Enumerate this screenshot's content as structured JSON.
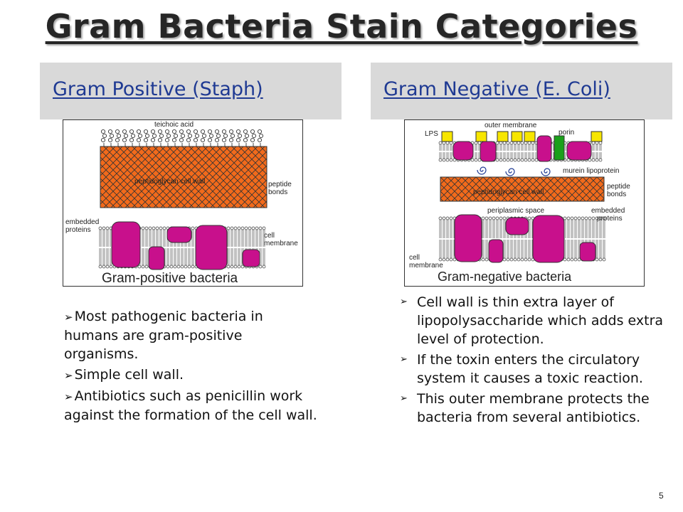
{
  "title": "Gram Bacteria Stain Categories",
  "left": {
    "header": "Gram  Positive (Staph)",
    "diagram": {
      "labels": {
        "teichoic_acid": "teichoic acid",
        "wall": "peptidoglycan cell wall",
        "peptide_1": "peptide",
        "peptide_2": "bonds",
        "embedded_1": "embedded",
        "embedded_2": "proteins",
        "membrane_1": "cell",
        "membrane_2": "membrane",
        "caption": "Gram-positive bacteria"
      }
    },
    "bullets": [
      "Most pathogenic bacteria in humans are gram-positive organisms.",
      "Simple cell wall.",
      "Antibiotics such as penicillin work against the formation of the cell wall."
    ]
  },
  "right": {
    "header": "Gram Negative (E. Coli)",
    "diagram": {
      "labels": {
        "lps": "LPS",
        "outer_membrane": "outer membrane",
        "porin": "porin",
        "murein": "murein lipoprotein",
        "wall": "peptidoglycan cell wall",
        "peptide_1": "peptide",
        "peptide_2": "bonds",
        "periplasmic": "periplasmic space",
        "embedded_1": "embedded",
        "embedded_2": "proteins",
        "membrane_1": "cell",
        "membrane_2": "membrane",
        "caption": "Gram-negative bacteria"
      }
    },
    "bullets": [
      "Cell wall is thin extra layer of lipopolysaccharide which adds extra level of protection.",
      "If the toxin enters the circulatory system it causes a toxic reaction.",
      "This outer membrane protects the bacteria from several antibiotics."
    ]
  },
  "colors": {
    "peptidoglycan": "#f26a1b",
    "protein": "#c8108c",
    "lps": "#f7e600",
    "porin": "#1aa01a",
    "header_bg": "#d9d9d9",
    "header_text": "#1f3a93"
  },
  "bullet_icon": "arrow-bullet-icon",
  "page_number": "5"
}
